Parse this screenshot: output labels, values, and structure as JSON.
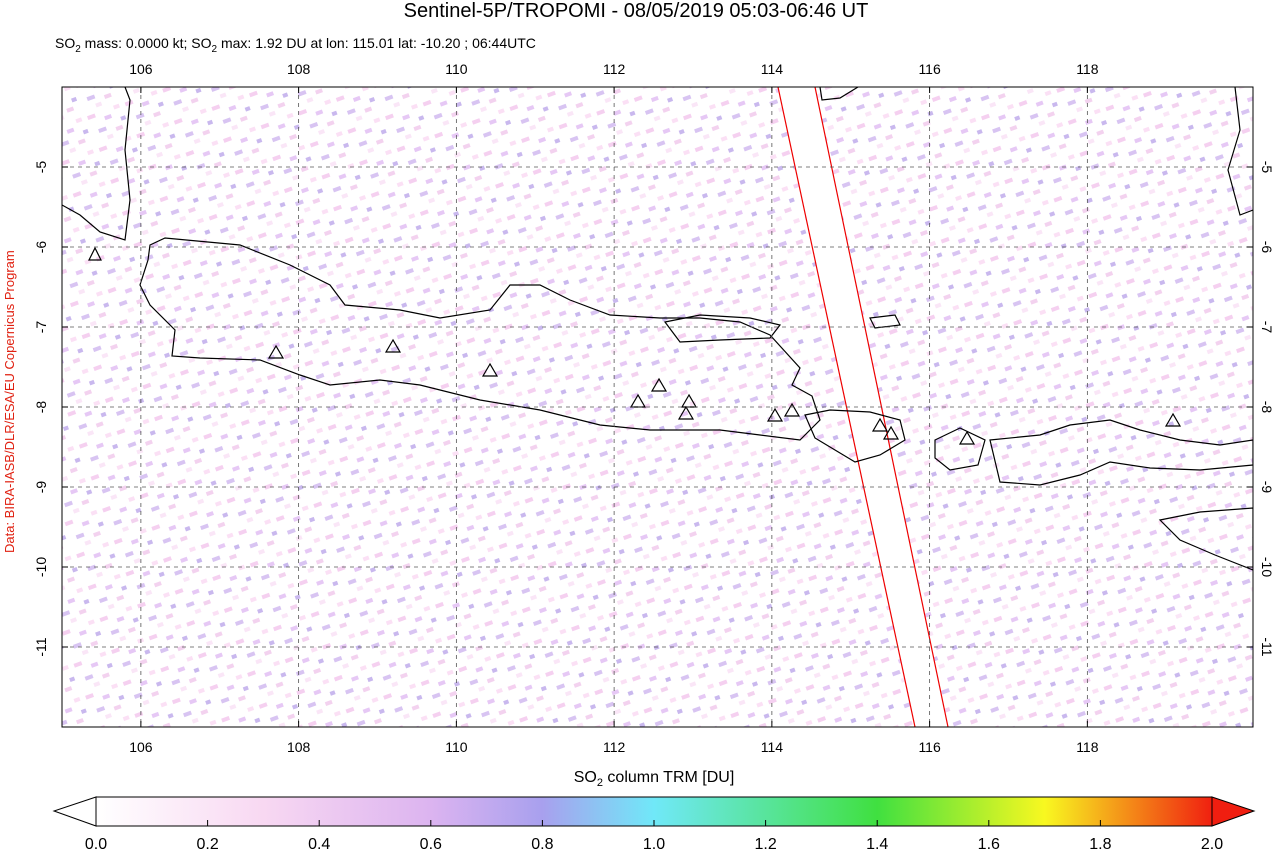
{
  "title": "Sentinel-5P/TROPOMI - 08/05/2019 05:03-06:46 UT",
  "subtitle": [
    "SO",
    "2",
    " mass: 0.0000 kt; SO",
    "2",
    " max: 1.92 DU at lon: 115.01 lat: -10.20 ; 06:44UTC"
  ],
  "credit": "Data: BIRA-IASB/DLR/ESA/EU Copernicus Program",
  "map": {
    "xlim": [
      105,
      120.1
    ],
    "ylim": [
      -12,
      -4
    ],
    "xticks": [
      106,
      108,
      110,
      112,
      114,
      116,
      118
    ],
    "yticks": [
      -5,
      -6,
      -7,
      -8,
      -9,
      -10,
      -11
    ]
  },
  "colorbar": {
    "label": [
      "SO",
      "2",
      " column TRM [DU]"
    ],
    "lim": [
      0,
      2
    ],
    "ticks": [
      {
        "value": 0,
        "label": "0.0"
      },
      {
        "value": 0.2,
        "label": "0.2"
      },
      {
        "value": 0.4,
        "label": "0.4"
      },
      {
        "value": 0.6,
        "label": "0.6"
      },
      {
        "value": 0.8,
        "label": "0.8"
      },
      {
        "value": 1,
        "label": "1.0"
      },
      {
        "value": 1.2,
        "label": "1.2"
      },
      {
        "value": 1.4,
        "label": "1.4"
      },
      {
        "value": 1.6,
        "label": "1.6"
      },
      {
        "value": 1.8,
        "label": "1.8"
      },
      {
        "value": 2,
        "label": "2.0"
      }
    ]
  }
}
